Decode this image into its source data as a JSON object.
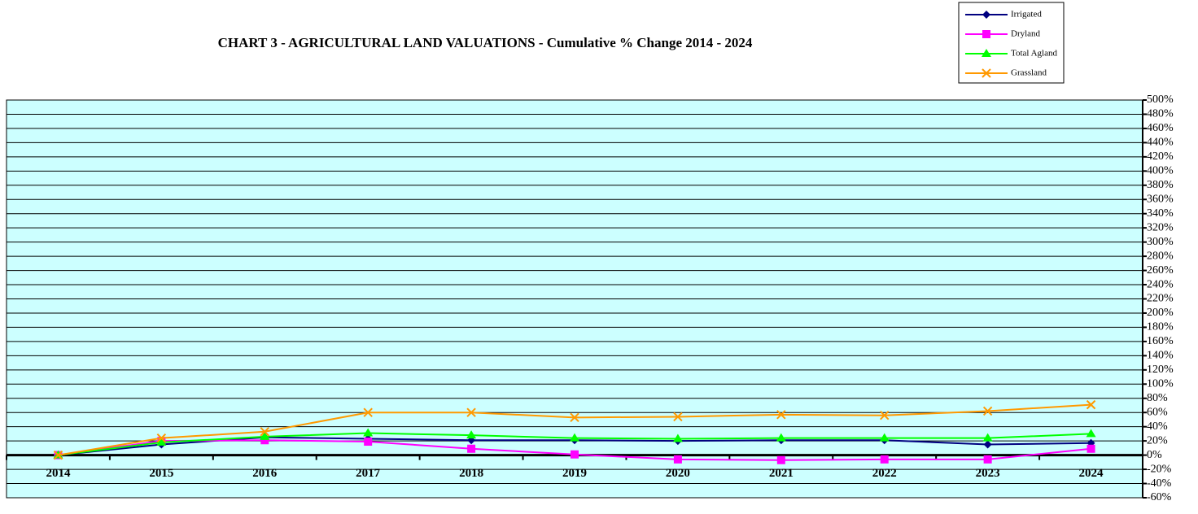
{
  "chart_data": {
    "type": "line",
    "title": "CHART 3 - AGRICULTURAL LAND VALUATIONS - Cumulative % Change 2014 - 2024",
    "categories": [
      "2014",
      "2015",
      "2016",
      "2017",
      "2018",
      "2019",
      "2020",
      "2021",
      "2022",
      "2023",
      "2024"
    ],
    "series": [
      {
        "name": "Irrigated",
        "color": "#000080",
        "marker": "diamond",
        "values": [
          0,
          15,
          25,
          23,
          21,
          21,
          20,
          21,
          21,
          15,
          17
        ]
      },
      {
        "name": "Dryland",
        "color": "#ff00ff",
        "marker": "square",
        "values": [
          0,
          20,
          21,
          19,
          9,
          1,
          -6,
          -7,
          -6,
          -6,
          9
        ]
      },
      {
        "name": "Total Agland",
        "color": "#00ff00",
        "marker": "triangle",
        "values": [
          0,
          18,
          26,
          31,
          28,
          24,
          23,
          24,
          24,
          24,
          30
        ]
      },
      {
        "name": "Grassland",
        "color": "#ff9900",
        "marker": "x",
        "values": [
          0,
          24,
          33,
          60,
          60,
          53,
          54,
          57,
          56,
          62,
          71
        ]
      }
    ],
    "ylim": [
      -60,
      500
    ],
    "yticks": [
      {
        "value": 500,
        "label": "500%"
      },
      {
        "value": 480,
        "label": "480%"
      },
      {
        "value": 460,
        "label": "460%"
      },
      {
        "value": 440,
        "label": "440%"
      },
      {
        "value": 420,
        "label": "420%"
      },
      {
        "value": 400,
        "label": "400%"
      },
      {
        "value": 380,
        "label": "380%"
      },
      {
        "value": 360,
        "label": "360%"
      },
      {
        "value": 340,
        "label": "340%"
      },
      {
        "value": 320,
        "label": "320%"
      },
      {
        "value": 300,
        "label": "300%"
      },
      {
        "value": 280,
        "label": "280%"
      },
      {
        "value": 260,
        "label": "260%"
      },
      {
        "value": 240,
        "label": "240%"
      },
      {
        "value": 220,
        "label": "220%"
      },
      {
        "value": 200,
        "label": "200%"
      },
      {
        "value": 180,
        "label": "180%"
      },
      {
        "value": 160,
        "label": "160%"
      },
      {
        "value": 140,
        "label": "140%"
      },
      {
        "value": 120,
        "label": "120%"
      },
      {
        "value": 100,
        "label": "100%"
      },
      {
        "value": 80,
        "label": "80%"
      },
      {
        "value": 60,
        "label": "60%"
      },
      {
        "value": 40,
        "label": "40%"
      },
      {
        "value": 20,
        "label": "20%"
      },
      {
        "value": 0,
        "label": "0%"
      },
      {
        "value": -20,
        "label": "-20%"
      },
      {
        "value": -40,
        "label": "-40%"
      },
      {
        "value": -60,
        "label": "-60%"
      }
    ],
    "grid": true,
    "background": "#ccffff",
    "legend": "top-right"
  }
}
